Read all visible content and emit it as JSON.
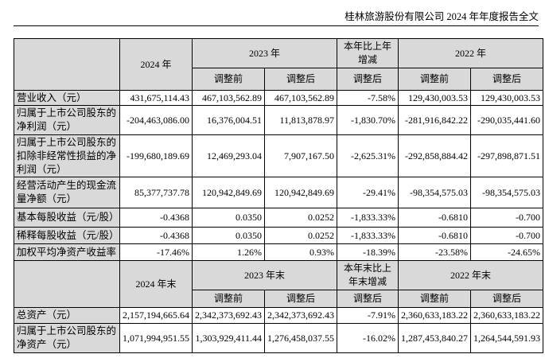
{
  "header": {
    "title": "桂林旅游股份有限公司 2024 年年度报告全文"
  },
  "table1": {
    "h_2024": "2024 年",
    "h_2023": "2023 年",
    "h_change": "本年比上年增减",
    "h_2022": "2022 年",
    "sub": [
      "调整前",
      "调整后",
      "调整后",
      "调整前",
      "调整后"
    ],
    "rows": [
      {
        "label": "营业收入（元）",
        "v": [
          "431,675,114.43",
          "467,103,562.89",
          "467,103,562.89",
          "-7.58%",
          "129,430,003.53",
          "129,430,003.53"
        ]
      },
      {
        "label": "归属于上市公司股东的净利润（元）",
        "v": [
          "-204,463,086.00",
          "16,376,004.51",
          "11,813,878.97",
          "-1,830.70%",
          "-281,916,842.22",
          "-290,035,441.60"
        ]
      },
      {
        "label": "归属于上市公司股东的扣除非经常性损益的净利润（元）",
        "v": [
          "-199,680,189.69",
          "12,469,293.04",
          "7,907,167.50",
          "-2,625.31%",
          "-292,858,884.42",
          "-297,898,871.51"
        ]
      },
      {
        "label": "经营活动产生的现金流量净额（元）",
        "v": [
          "85,377,737.78",
          "120,942,849.69",
          "120,942,849.69",
          "-29.41%",
          "-98,354,575.03",
          "-98,354,575.03"
        ]
      },
      {
        "label": "基本每股收益（元/股）",
        "v": [
          "-0.4368",
          "0.0350",
          "0.0252",
          "-1,833.33%",
          "-0.6810",
          "-0.700"
        ]
      },
      {
        "label": "稀释每股收益（元/股）",
        "v": [
          "-0.4368",
          "0.0350",
          "0.0252",
          "-1,833.33%",
          "-0.6810",
          "-0.700"
        ]
      },
      {
        "label": "加权平均净资产收益率",
        "v": [
          "-17.46%",
          "1.26%",
          "0.93%",
          "-18.39%",
          "-23.58%",
          "-24.65%"
        ]
      }
    ]
  },
  "table2": {
    "h_2024": "2024 年末",
    "h_2023": "2023 年末",
    "h_change": "本年末比上年末增减",
    "h_2022": "2022 年末",
    "sub": [
      "调整前",
      "调整后",
      "调整后",
      "调整前",
      "调整后"
    ],
    "rows": [
      {
        "label": "总资产（元）",
        "v": [
          "2,157,194,665.64",
          "2,342,373,692.43",
          "2,342,373,692.43",
          "-7.91%",
          "2,360,633,183.22",
          "2,360,633,183.22"
        ]
      },
      {
        "label": "归属于上市公司股东的净资产（元）",
        "v": [
          "1,071,994,951.55",
          "1,303,929,411.44",
          "1,276,458,037.55",
          "-16.02%",
          "1,287,453,840.27",
          "1,264,544,591.93"
        ]
      }
    ]
  }
}
